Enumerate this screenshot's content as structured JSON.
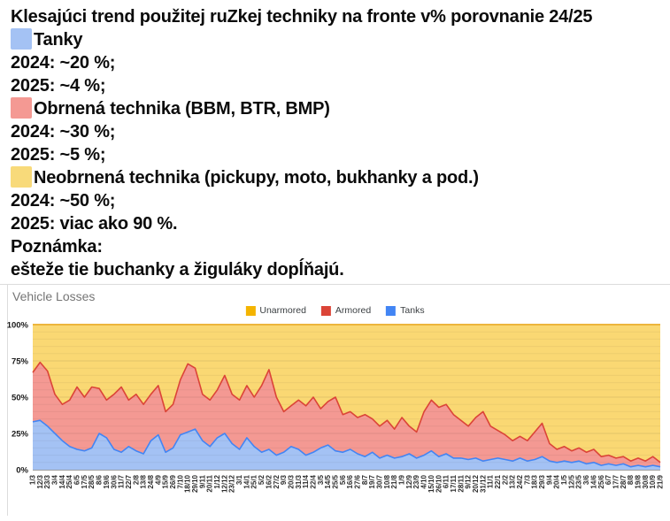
{
  "post": {
    "title": "Klesajúci trend použitej ruZkej techniky na fronte v% porovnanie 24/25",
    "items": [
      {
        "swatch": "#a4c2f4",
        "label": "Tanky",
        "line1": "2024: ~20 %;",
        "line2": "2025: ~4 %;"
      },
      {
        "swatch": "#f49993",
        "label": "Obrnená technika (BBM, BTR, BMP)",
        "line1": "2024: ~30 %;",
        "line2": "2025: ~5 %;"
      },
      {
        "swatch": "#f8da7a",
        "label": "Neobrnená technika (pickupy, moto, bukhanky a pod.)",
        "line1": "2024: ~50 %;",
        "line2": "2025: viac ako 90 %."
      }
    ],
    "note_label": "Poznámka:",
    "note_text": "ešteže tie buchanky a žiguláky dopĺňajú."
  },
  "chart": {
    "title": "Vehicle Losses",
    "legend": [
      {
        "label": "Unarmored",
        "color": "#f4b400"
      },
      {
        "label": "Armored",
        "color": "#db4437"
      },
      {
        "label": "Tanks",
        "color": "#4285f4"
      }
    ]
  },
  "chart_data": {
    "type": "area",
    "stacked": true,
    "percent_stacked": true,
    "title": "Vehicle Losses",
    "ylabel": "",
    "xlabel": "",
    "ylim": [
      0,
      100
    ],
    "y_ticks": [
      0,
      25,
      50,
      75,
      100
    ],
    "minor_grid_step": 5,
    "legend_position": "top-center",
    "x": [
      "1/3",
      "12/3",
      "23/3",
      "3/4",
      "14/4",
      "25/4",
      "6/5",
      "17/5",
      "28/5",
      "8/6",
      "19/6",
      "30/6",
      "11/7",
      "22/7",
      "2/8",
      "13/8",
      "24/8",
      "4/9",
      "15/9",
      "26/9",
      "7/10",
      "18/10",
      "29/10",
      "9/11",
      "20/11",
      "1/12",
      "12/12",
      "23/12",
      "3/1",
      "14/1",
      "25/1",
      "5/2",
      "16/2",
      "27/2",
      "9/3",
      "20/3",
      "31/3",
      "11/4",
      "22/4",
      "3/5",
      "14/5",
      "25/5",
      "5/6",
      "16/6",
      "27/6",
      "8/7",
      "19/7",
      "30/7",
      "10/8",
      "21/8",
      "1/9",
      "12/9",
      "23/9",
      "4/10",
      "15/10",
      "26/10",
      "6/11",
      "17/11",
      "28/11",
      "9/12",
      "20/12",
      "31/12",
      "11/1",
      "22/1",
      "2/2",
      "13/2",
      "24/2",
      "7/3",
      "18/3",
      "29/3",
      "9/4",
      "20/4",
      "1/5",
      "12/5",
      "23/5",
      "3/6",
      "14/6",
      "25/6",
      "6/7",
      "17/7",
      "28/7",
      "8/8",
      "19/8",
      "30/8",
      "10/9",
      "21/9"
    ],
    "series": [
      {
        "name": "Tanks",
        "line_color": "#4285f4",
        "fill_color": "#a4c2f4",
        "values": [
          33,
          34,
          30,
          25,
          20,
          16,
          14,
          13,
          15,
          25,
          22,
          14,
          12,
          16,
          13,
          11,
          20,
          24,
          12,
          15,
          24,
          26,
          28,
          20,
          16,
          22,
          25,
          18,
          14,
          22,
          16,
          12,
          14,
          10,
          12,
          16,
          14,
          10,
          12,
          15,
          17,
          13,
          12,
          14,
          11,
          9,
          12,
          8,
          10,
          8,
          9,
          11,
          8,
          10,
          13,
          9,
          11,
          8,
          8,
          7,
          8,
          6,
          7,
          8,
          7,
          6,
          8,
          6,
          7,
          9,
          6,
          5,
          6,
          5,
          6,
          4,
          5,
          3,
          4,
          3,
          4,
          2,
          3,
          2,
          3,
          2
        ]
      },
      {
        "name": "Armored",
        "line_color": "#db4437",
        "fill_color": "#f49993",
        "values": [
          34,
          40,
          38,
          27,
          25,
          32,
          43,
          37,
          42,
          31,
          26,
          38,
          45,
          32,
          39,
          34,
          32,
          34,
          28,
          30,
          38,
          47,
          42,
          32,
          32,
          33,
          40,
          34,
          34,
          36,
          34,
          46,
          55,
          40,
          28,
          28,
          34,
          34,
          38,
          27,
          30,
          37,
          26,
          26,
          25,
          29,
          23,
          22,
          24,
          20,
          27,
          19,
          18,
          30,
          35,
          34,
          34,
          30,
          26,
          23,
          28,
          34,
          23,
          19,
          17,
          14,
          15,
          14,
          19,
          23,
          12,
          9,
          10,
          8,
          9,
          8,
          9,
          6,
          6,
          5,
          5,
          4,
          5,
          4,
          6,
          3
        ]
      },
      {
        "name": "Unarmored",
        "line_color": "#edb53c",
        "fill_color": "#fad873",
        "values": [
          33,
          26,
          32,
          48,
          55,
          52,
          43,
          50,
          43,
          44,
          52,
          48,
          43,
          52,
          48,
          55,
          48,
          42,
          60,
          55,
          38,
          27,
          30,
          48,
          52,
          45,
          35,
          48,
          52,
          42,
          50,
          42,
          31,
          50,
          60,
          56,
          52,
          56,
          50,
          58,
          53,
          50,
          62,
          60,
          64,
          62,
          65,
          70,
          66,
          72,
          64,
          70,
          74,
          60,
          52,
          57,
          55,
          62,
          66,
          70,
          64,
          60,
          70,
          73,
          76,
          80,
          77,
          80,
          74,
          68,
          82,
          86,
          84,
          87,
          85,
          88,
          86,
          91,
          90,
          92,
          91,
          94,
          92,
          94,
          91,
          95
        ]
      }
    ]
  }
}
